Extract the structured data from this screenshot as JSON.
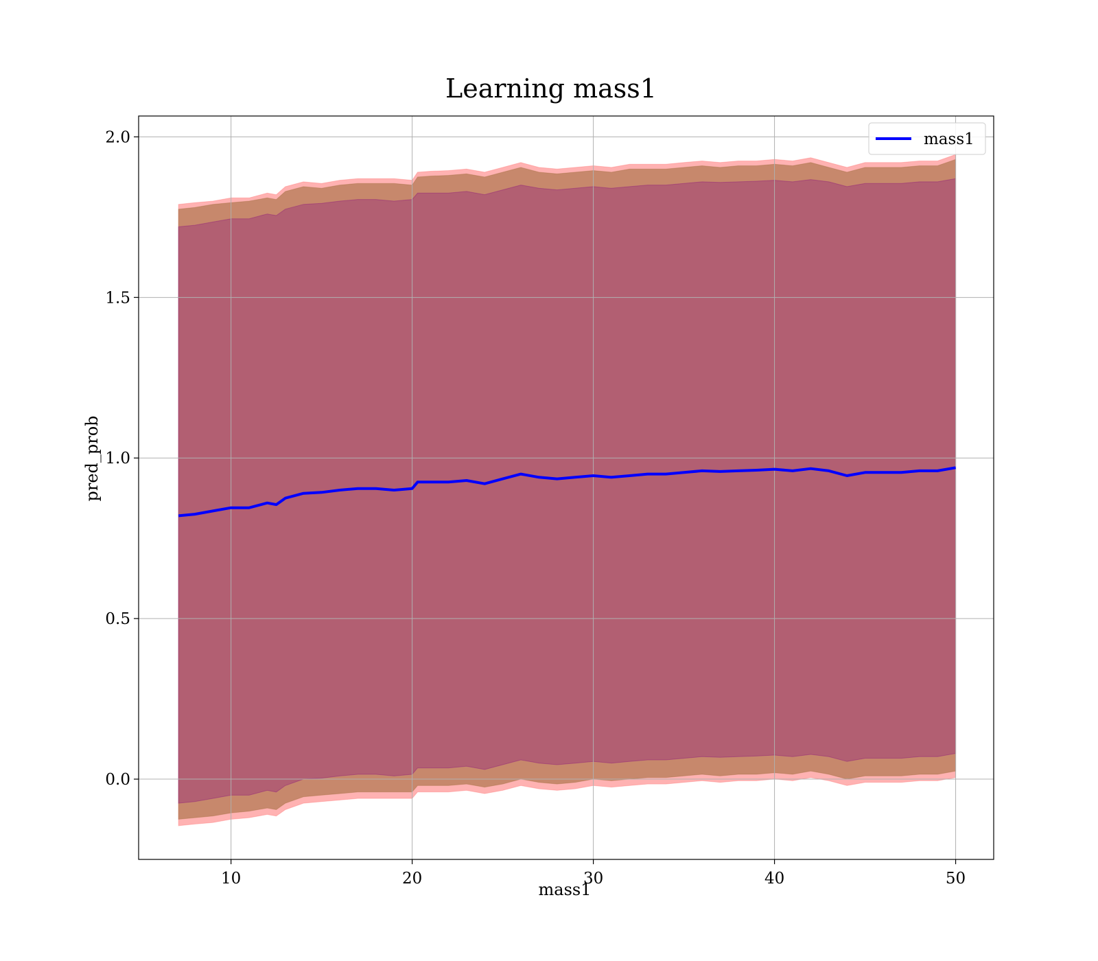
{
  "chart_data": {
    "type": "area",
    "title": "Learning mass1",
    "xlabel": "mass1",
    "ylabel": "pred_prob",
    "xlim": [
      4.9,
      52.1
    ],
    "ylim": [
      -0.25,
      2.065
    ],
    "x_ticks": [
      10,
      20,
      30,
      40,
      50
    ],
    "x_tick_labels": [
      "10",
      "20",
      "30",
      "40",
      "50"
    ],
    "y_ticks": [
      0.0,
      0.5,
      1.0,
      1.5,
      2.0
    ],
    "y_tick_labels": [
      "0.0",
      "0.5",
      "1.0",
      "1.5",
      "2.0"
    ],
    "grid": true,
    "legend": {
      "position": "top-right",
      "entries": [
        "mass1"
      ]
    },
    "x": [
      7.1,
      8,
      9,
      10,
      11,
      12,
      12.5,
      13,
      14,
      15,
      16,
      17,
      18,
      19,
      20,
      20.3,
      21,
      22,
      23,
      24,
      25,
      26,
      27,
      28,
      29,
      30,
      31,
      32,
      33,
      34,
      35,
      36,
      37,
      38,
      39,
      40,
      41,
      42,
      43,
      44,
      45,
      46,
      47,
      48,
      49,
      50
    ],
    "series": [
      {
        "name": "mass1",
        "color": "#0000ff",
        "values": [
          0.82,
          0.825,
          0.835,
          0.845,
          0.845,
          0.86,
          0.855,
          0.875,
          0.89,
          0.893,
          0.9,
          0.905,
          0.905,
          0.9,
          0.905,
          0.925,
          0.925,
          0.925,
          0.93,
          0.92,
          0.935,
          0.95,
          0.94,
          0.935,
          0.94,
          0.945,
          0.94,
          0.945,
          0.95,
          0.95,
          0.955,
          0.96,
          0.958,
          0.96,
          0.962,
          0.965,
          0.96,
          0.967,
          0.96,
          0.945,
          0.955,
          0.955,
          0.955,
          0.96,
          0.96,
          0.97
        ]
      }
    ],
    "bands": [
      {
        "color": "#ff6666",
        "opacity": 0.5,
        "upper": [
          1.79,
          1.795,
          1.8,
          1.81,
          1.81,
          1.825,
          1.82,
          1.845,
          1.86,
          1.855,
          1.865,
          1.87,
          1.87,
          1.87,
          1.865,
          1.89,
          1.893,
          1.895,
          1.9,
          1.89,
          1.905,
          1.92,
          1.905,
          1.9,
          1.905,
          1.91,
          1.905,
          1.915,
          1.915,
          1.915,
          1.92,
          1.925,
          1.92,
          1.925,
          1.925,
          1.93,
          1.925,
          1.935,
          1.92,
          1.905,
          1.92,
          1.92,
          1.92,
          1.925,
          1.925,
          1.945
        ],
        "lower": [
          -0.145,
          -0.14,
          -0.135,
          -0.125,
          -0.12,
          -0.11,
          -0.115,
          -0.095,
          -0.075,
          -0.07,
          -0.065,
          -0.06,
          -0.06,
          -0.06,
          -0.06,
          -0.04,
          -0.04,
          -0.04,
          -0.035,
          -0.045,
          -0.035,
          -0.02,
          -0.03,
          -0.035,
          -0.03,
          -0.02,
          -0.025,
          -0.02,
          -0.015,
          -0.015,
          -0.01,
          -0.005,
          -0.01,
          -0.005,
          -0.005,
          0.0,
          -0.005,
          0.005,
          -0.005,
          -0.02,
          -0.01,
          -0.01,
          -0.01,
          -0.005,
          -0.005,
          0.005
        ]
      },
      {
        "color": "#996633",
        "opacity": 0.55,
        "upper": [
          1.775,
          1.78,
          1.79,
          1.795,
          1.8,
          1.81,
          1.805,
          1.83,
          1.845,
          1.84,
          1.85,
          1.855,
          1.855,
          1.855,
          1.85,
          1.875,
          1.878,
          1.88,
          1.885,
          1.875,
          1.89,
          1.905,
          1.89,
          1.885,
          1.89,
          1.895,
          1.89,
          1.9,
          1.9,
          1.9,
          1.905,
          1.91,
          1.905,
          1.91,
          1.91,
          1.915,
          1.91,
          1.92,
          1.905,
          1.89,
          1.905,
          1.905,
          1.905,
          1.91,
          1.91,
          1.93
        ],
        "lower": [
          -0.125,
          -0.12,
          -0.115,
          -0.105,
          -0.1,
          -0.09,
          -0.095,
          -0.075,
          -0.055,
          -0.05,
          -0.045,
          -0.04,
          -0.04,
          -0.04,
          -0.04,
          -0.02,
          -0.02,
          -0.02,
          -0.015,
          -0.025,
          -0.015,
          0.0,
          -0.01,
          -0.015,
          -0.01,
          0.0,
          -0.005,
          0.0,
          0.005,
          0.005,
          0.01,
          0.015,
          0.01,
          0.015,
          0.015,
          0.02,
          0.015,
          0.025,
          0.015,
          0.0,
          0.01,
          0.01,
          0.01,
          0.015,
          0.015,
          0.025
        ]
      },
      {
        "color": "#800080",
        "opacity": 0.3,
        "upper": [
          1.72,
          1.725,
          1.735,
          1.745,
          1.745,
          1.76,
          1.755,
          1.775,
          1.79,
          1.793,
          1.8,
          1.805,
          1.805,
          1.8,
          1.805,
          1.825,
          1.825,
          1.825,
          1.83,
          1.82,
          1.835,
          1.85,
          1.84,
          1.835,
          1.84,
          1.845,
          1.84,
          1.845,
          1.85,
          1.85,
          1.855,
          1.86,
          1.858,
          1.86,
          1.862,
          1.865,
          1.86,
          1.867,
          1.86,
          1.845,
          1.855,
          1.855,
          1.855,
          1.86,
          1.86,
          1.87
        ],
        "lower": [
          -0.075,
          -0.07,
          -0.06,
          -0.05,
          -0.05,
          -0.035,
          -0.04,
          -0.02,
          0.0,
          0.003,
          0.01,
          0.015,
          0.015,
          0.01,
          0.015,
          0.035,
          0.035,
          0.035,
          0.04,
          0.03,
          0.045,
          0.06,
          0.05,
          0.045,
          0.05,
          0.055,
          0.05,
          0.055,
          0.06,
          0.06,
          0.065,
          0.07,
          0.068,
          0.07,
          0.072,
          0.075,
          0.07,
          0.077,
          0.07,
          0.055,
          0.065,
          0.065,
          0.065,
          0.07,
          0.07,
          0.08
        ]
      }
    ]
  }
}
